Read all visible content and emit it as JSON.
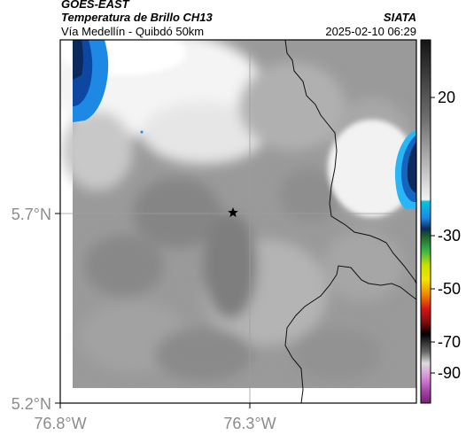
{
  "header": {
    "satellite": "GOES-EAST",
    "product": "Temperatura de Brillo CH13",
    "route": "Vía Medellín - Quibdó 50km",
    "org": "SIATA",
    "datetime": "2025-02-10 06:29"
  },
  "map": {
    "lon_ticks": [
      "76.8°W",
      "76.3°W"
    ],
    "lat_ticks": [
      "5.7°N",
      "5.2°N"
    ],
    "marker": "star-marker"
  },
  "colorbar": {
    "tick_labels": [
      "20",
      "-30",
      "-50",
      "-70",
      "-90"
    ],
    "tick_values": [
      20,
      -30,
      -50,
      -70,
      -90
    ],
    "range": [
      -95,
      40
    ],
    "colors": {
      "warm_dark": "#1a1a1a",
      "gray_mid": "#8a8a8a",
      "gray_light": "#f0f0f0",
      "cyan": "#00bcd4",
      "blue": "#1565c0",
      "navy": "#0d2a5c",
      "green": "#2e9d3a",
      "yellow": "#f5e400",
      "orange": "#f08a00",
      "red": "#d31818",
      "black": "#000000",
      "magenta": "#b040b0",
      "pink": "#d88ad8"
    }
  }
}
